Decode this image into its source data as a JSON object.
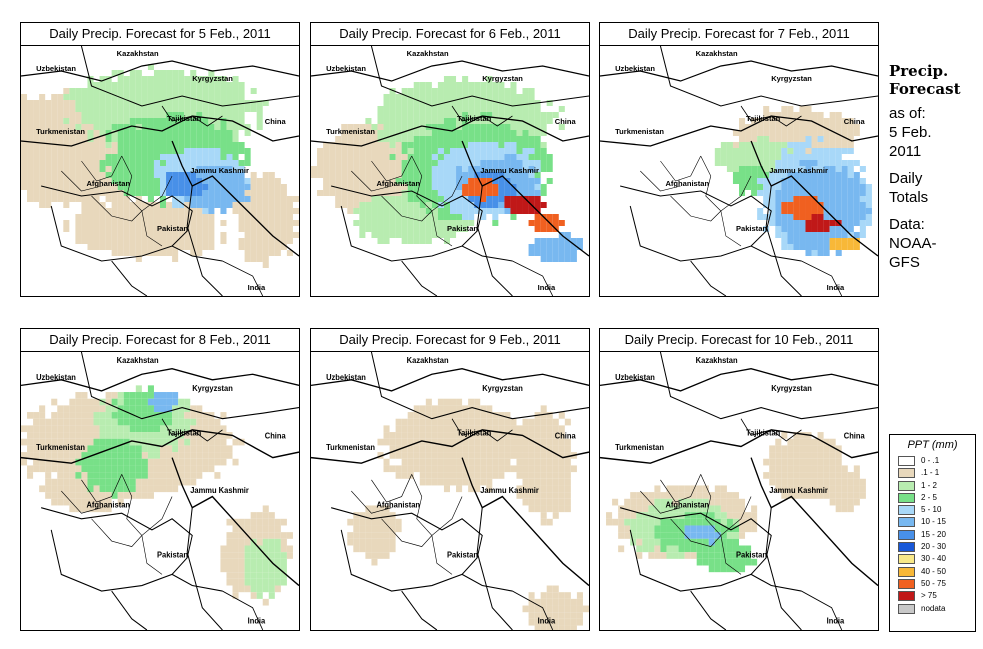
{
  "panels": [
    {
      "title": "Daily Precip. Forecast for  5 Feb., 2011",
      "pattern": "feb5"
    },
    {
      "title": "Daily Precip. Forecast for  6 Feb., 2011",
      "pattern": "feb6"
    },
    {
      "title": "Daily Precip. Forecast for  7 Feb., 2011",
      "pattern": "feb7"
    },
    {
      "title": "Daily Precip. Forecast for  8 Feb., 2011",
      "pattern": "feb8"
    },
    {
      "title": "Daily Precip. Forecast for  9 Feb., 2011",
      "pattern": "feb9"
    },
    {
      "title": "Daily Precip. Forecast for  10 Feb., 2011",
      "pattern": "feb10"
    }
  ],
  "map_labels": {
    "kazakhstan": "Kazakhstan",
    "uzbekistan": "Uzbekistan",
    "kyrgyzstan": "Kyrgyzstan",
    "tajikistan": "Tajikistan",
    "turkmenistan": "Turkmenistan",
    "china": "China",
    "afghanistan": "Afghanistan",
    "jammu_kashmir": "Jammu Kashmir",
    "pakistan": "Pakistan",
    "india": "India"
  },
  "side": {
    "heading_1": "Precip.",
    "heading_2": "Forecast",
    "as_of": "as of:",
    "date_1": "5 Feb.",
    "date_2": "2011",
    "totals_1": "Daily",
    "totals_2": "Totals",
    "data_1": "Data:",
    "data_2": "NOAA-",
    "data_3": "GFS"
  },
  "legend": {
    "title": "PPT (mm)",
    "items": [
      {
        "label": "0 - .1",
        "color": "#ffffff"
      },
      {
        "label": ".1 - 1",
        "color": "#e8d8bc"
      },
      {
        "label": "1 - 2",
        "color": "#b8ecb0"
      },
      {
        "label": "2 - 5",
        "color": "#78e088"
      },
      {
        "label": "5 - 10",
        "color": "#a8d8f8"
      },
      {
        "label": "10 - 15",
        "color": "#78b8f0"
      },
      {
        "label": "15 - 20",
        "color": "#4890e8"
      },
      {
        "label": "20 - 30",
        "color": "#1858d8"
      },
      {
        "label": "30 - 40",
        "color": "#f8e888"
      },
      {
        "label": "40 - 50",
        "color": "#f8b838"
      },
      {
        "label": "50 - 75",
        "color": "#f06020"
      },
      {
        "label": "> 75",
        "color": "#c01818"
      },
      {
        "label": "nodata",
        "color": "#c8c8c8"
      }
    ]
  }
}
